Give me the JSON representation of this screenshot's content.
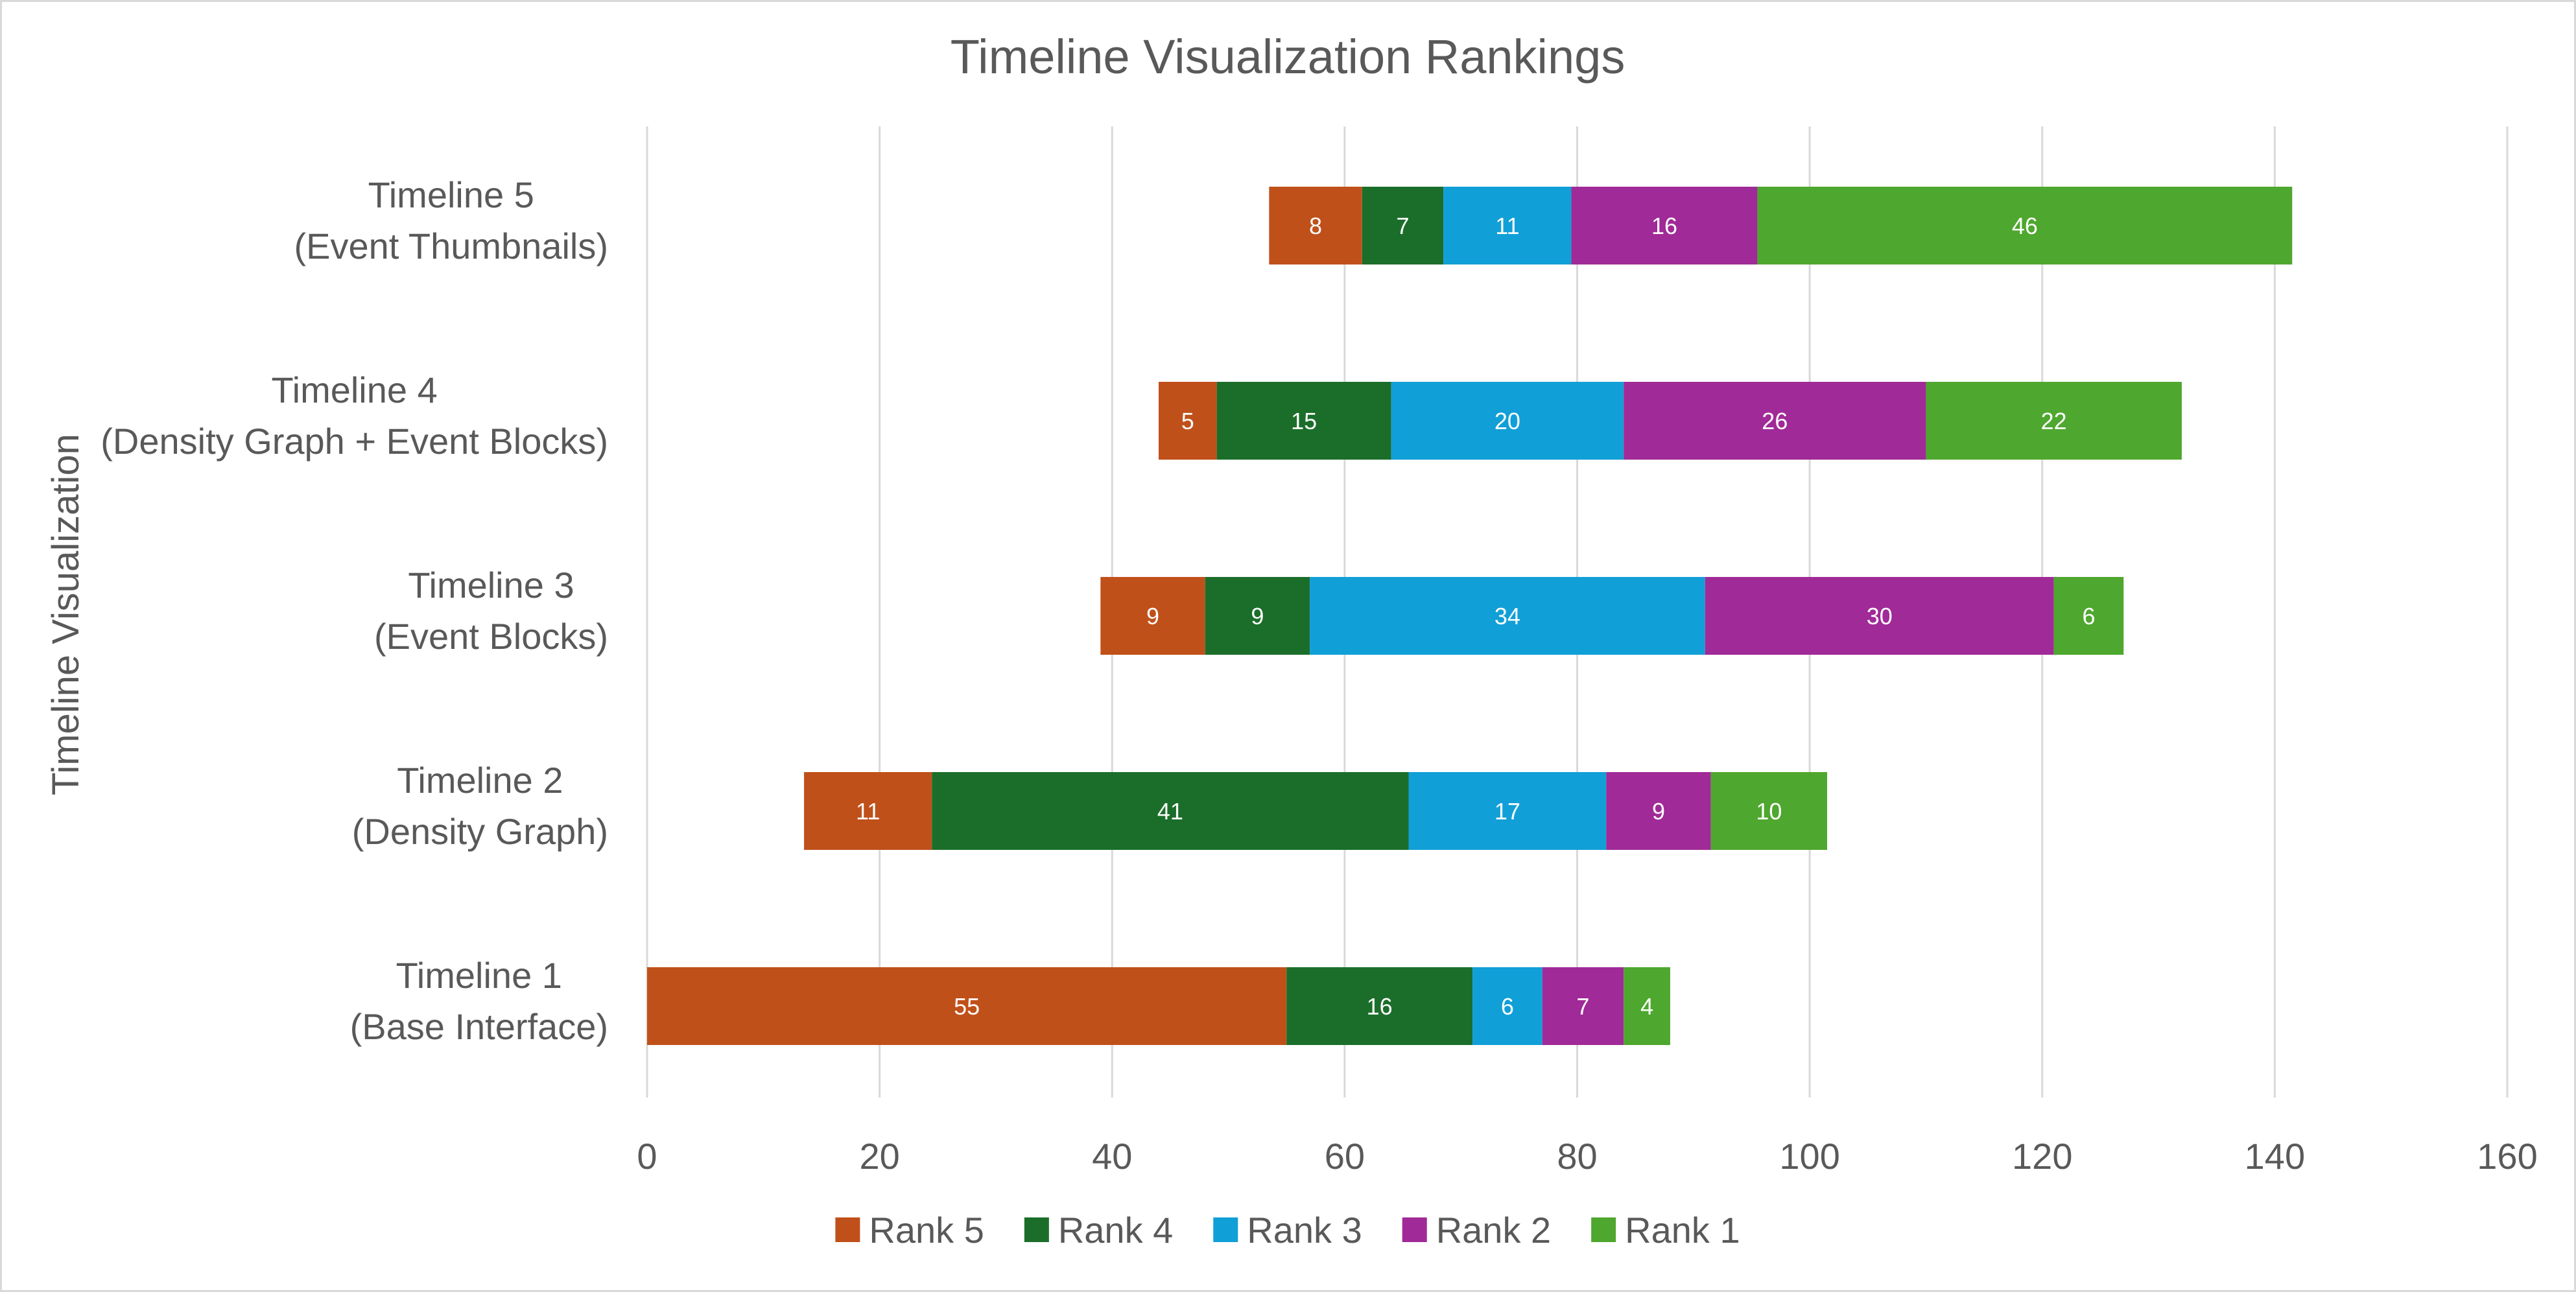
{
  "chart_data": {
    "type": "bar",
    "orientation": "horizontal",
    "stacked": true,
    "title": "Timeline Visualization Rankings",
    "ylabel": "Timeline Visualization",
    "xlabel": "",
    "xlim": [
      0,
      160
    ],
    "x_ticks": [
      "0",
      "20",
      "40",
      "60",
      "80",
      "100",
      "120",
      "140",
      "160"
    ],
    "grid": true,
    "legend_position": "bottom",
    "categories": [
      [
        "Timeline 1",
        "(Base Interface)"
      ],
      [
        "Timeline 2",
        "(Density Graph)"
      ],
      [
        "Timeline 3",
        "(Event Blocks)"
      ],
      [
        "Timeline 4",
        "(Density Graph + Event Blocks)"
      ],
      [
        "Timeline 5",
        "(Event Thumbnails)"
      ]
    ],
    "offsets": [
      0,
      13.5,
      39,
      44,
      53.5
    ],
    "series": [
      {
        "name": "Rank 5",
        "color": "#c0501a",
        "values": [
          55,
          11,
          9,
          5,
          8
        ]
      },
      {
        "name": "Rank 4",
        "color": "#1b6e2a",
        "values": [
          16,
          41,
          9,
          15,
          7
        ]
      },
      {
        "name": "Rank 3",
        "color": "#119fd7",
        "values": [
          6,
          17,
          34,
          20,
          11
        ]
      },
      {
        "name": "Rank 2",
        "color": "#a02a97",
        "values": [
          7,
          9,
          30,
          26,
          16
        ]
      },
      {
        "name": "Rank 1",
        "color": "#4ea72e",
        "values": [
          4,
          10,
          6,
          22,
          46
        ]
      }
    ]
  }
}
